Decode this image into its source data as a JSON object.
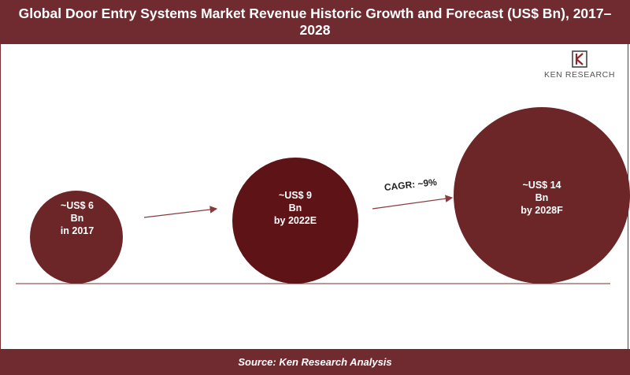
{
  "header": {
    "title": "Global Door Entry Systems Market Revenue Historic Growth and Forecast (US$ Bn), 2017–2028"
  },
  "logo": {
    "wordmark": "KEN RESEARCH",
    "icon": "ken-research-logo-icon"
  },
  "footer": {
    "source": "Source: Ken Research Analysis"
  },
  "colors": {
    "banner": "#6f2b2f",
    "bubble_2017": "#6d2628",
    "bubble_2022": "#5e1316",
    "bubble_2028": "#6d2628",
    "arrow": "#8a3a3f"
  },
  "chart_data": {
    "type": "bubble",
    "title": "Global Door Entry Systems Market Revenue Historic Growth and Forecast (US$ Bn), 2017–2028",
    "unit": "US$ Bn",
    "points": [
      {
        "year": "2017",
        "value": 6,
        "label_lines": [
          "~US$ 6",
          "Bn",
          "in 2017"
        ]
      },
      {
        "year": "2022E",
        "value": 9,
        "label_lines": [
          "~US$ 9",
          "Bn",
          "by 2022E"
        ]
      },
      {
        "year": "2028F",
        "value": 14,
        "label_lines": [
          "~US$ 14",
          "Bn",
          "by 2028F"
        ]
      }
    ],
    "annotations": [
      {
        "text": "CAGR: ~9%",
        "between": [
          "2022E",
          "2028F"
        ]
      }
    ]
  }
}
